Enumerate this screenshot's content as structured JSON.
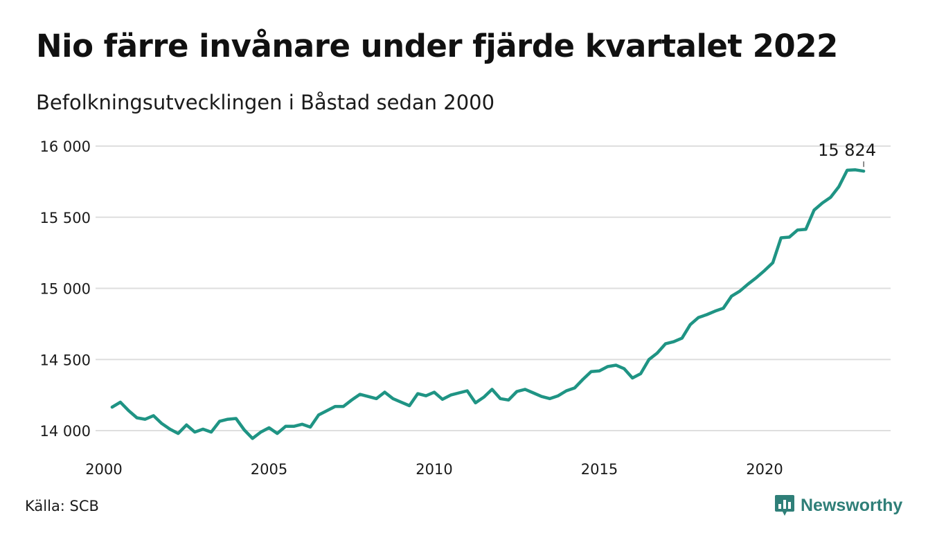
{
  "title": "Nio färre invånare under fjärde kvartalet 2022",
  "subtitle": "Befolkningsutvecklingen i Båstad sedan 2000",
  "source": "Källa: SCB",
  "brand": {
    "name": "Newsworthy",
    "icon": "newsworthy-chart-logo-icon",
    "color": "#2f7f78"
  },
  "chart_data": {
    "type": "line",
    "title": "Nio färre invånare under fjärde kvartalet 2022",
    "subtitle": "Befolkningsutvecklingen i Båstad sedan 2000",
    "xlabel": "",
    "ylabel": "",
    "ylim": [
      13900,
      16000
    ],
    "xlim": [
      2000,
      2023.5
    ],
    "grid": true,
    "line_color": "#1f9484",
    "y_ticks": [
      {
        "value": 14000,
        "label": "14 000"
      },
      {
        "value": 14500,
        "label": "14 500"
      },
      {
        "value": 15000,
        "label": "15 000"
      },
      {
        "value": 15500,
        "label": "15 500"
      },
      {
        "value": 16000,
        "label": "16 000"
      }
    ],
    "x_ticks": [
      {
        "value": 2000,
        "label": "2000"
      },
      {
        "value": 2005,
        "label": "2005"
      },
      {
        "value": 2010,
        "label": "2010"
      },
      {
        "value": 2015,
        "label": "2015"
      },
      {
        "value": 2020,
        "label": "2020"
      }
    ],
    "series": [
      {
        "x": [
          2000.25,
          2000.5,
          2000.75,
          2001.0,
          2001.25,
          2001.5,
          2001.75,
          2002.0,
          2002.25,
          2002.5,
          2002.75,
          2003.0,
          2003.25,
          2003.5,
          2003.75,
          2004.0,
          2004.25,
          2004.5,
          2004.75,
          2005.0,
          2005.25,
          2005.5,
          2005.75,
          2006.0,
          2006.25,
          2006.5,
          2006.75,
          2007.0,
          2007.25,
          2007.5,
          2007.75,
          2008.0,
          2008.25,
          2008.5,
          2008.75,
          2009.0,
          2009.25,
          2009.5,
          2009.75,
          2010.0,
          2010.25,
          2010.5,
          2010.75,
          2011.0,
          2011.25,
          2011.5,
          2011.75,
          2012.0,
          2012.25,
          2012.5,
          2012.75,
          2013.0,
          2013.25,
          2013.5,
          2013.75,
          2014.0,
          2014.25,
          2014.5,
          2014.75,
          2015.0,
          2015.25,
          2015.5,
          2015.75,
          2016.0,
          2016.25,
          2016.5,
          2016.75,
          2017.0,
          2017.25,
          2017.5,
          2017.75,
          2018.0,
          2018.25,
          2018.5,
          2018.75,
          2019.0,
          2019.25,
          2019.5,
          2019.75,
          2020.0,
          2020.25,
          2020.5,
          2020.75,
          2021.0,
          2021.25,
          2021.5,
          2021.75,
          2022.0,
          2022.25,
          2022.5,
          2022.75,
          2023.0
        ],
        "values": [
          14165,
          14200,
          14140,
          14090,
          14080,
          14105,
          14050,
          14010,
          13980,
          14040,
          13990,
          14010,
          13990,
          14065,
          14080,
          14085,
          14005,
          13945,
          13990,
          14020,
          13980,
          14030,
          14030,
          14045,
          14025,
          14110,
          14140,
          14170,
          14170,
          14215,
          14255,
          14240,
          14225,
          14270,
          14225,
          14200,
          14175,
          14260,
          14245,
          14270,
          14220,
          14250,
          14265,
          14280,
          14195,
          14235,
          14290,
          14225,
          14215,
          14275,
          14290,
          14265,
          14240,
          14225,
          14245,
          14280,
          14300,
          14360,
          14415,
          14420,
          14450,
          14460,
          14435,
          14370,
          14400,
          14500,
          14545,
          14610,
          14625,
          14650,
          14745,
          14795,
          14815,
          14840,
          14860,
          14945,
          14980,
          15030,
          15075,
          15125,
          15180,
          15355,
          15360,
          15410,
          15415,
          15550,
          15600,
          15640,
          15715,
          15830,
          15833,
          15824
        ]
      }
    ],
    "annotations": [
      {
        "x": 2023.0,
        "y": 15824,
        "text": "15 824"
      }
    ]
  }
}
